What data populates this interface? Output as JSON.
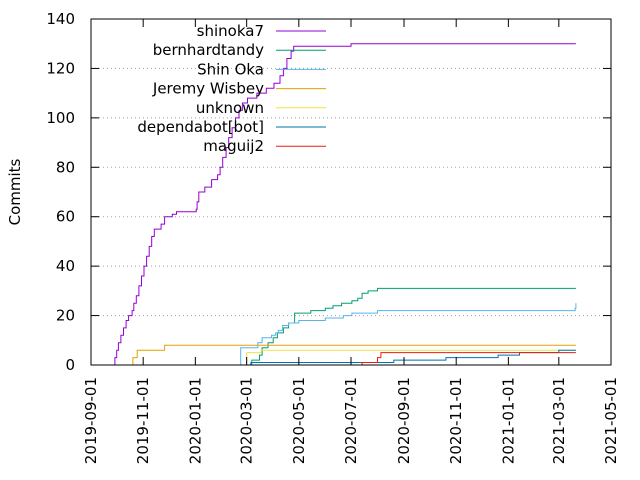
{
  "chart_data": {
    "type": "line",
    "title": "",
    "xlabel": "",
    "ylabel": "Commits",
    "ylim": [
      0,
      140
    ],
    "yticks": [
      0,
      20,
      40,
      60,
      80,
      100,
      120,
      140
    ],
    "xlim": [
      "2019-09-01",
      "2021-05-01"
    ],
    "xticks": [
      "2019-09-01",
      "2019-11-01",
      "2020-01-01",
      "2020-03-01",
      "2020-05-01",
      "2020-07-01",
      "2020-09-01",
      "2020-11-01",
      "2021-01-01",
      "2021-03-01",
      "2021-05-01"
    ],
    "grid": true,
    "grid_style": "dotted",
    "step": true,
    "legend_position": "top-left",
    "series": [
      {
        "name": "shinoka7",
        "color": "#9400d3",
        "points": [
          [
            "2019-09-27",
            0
          ],
          [
            "2019-09-29",
            3
          ],
          [
            "2019-10-01",
            6
          ],
          [
            "2019-10-03",
            9
          ],
          [
            "2019-10-06",
            12
          ],
          [
            "2019-10-09",
            15
          ],
          [
            "2019-10-12",
            18
          ],
          [
            "2019-10-15",
            20
          ],
          [
            "2019-10-19",
            22
          ],
          [
            "2019-10-21",
            25
          ],
          [
            "2019-10-24",
            28
          ],
          [
            "2019-10-27",
            32
          ],
          [
            "2019-10-30",
            36
          ],
          [
            "2019-11-02",
            40
          ],
          [
            "2019-11-05",
            44
          ],
          [
            "2019-11-08",
            48
          ],
          [
            "2019-11-11",
            52
          ],
          [
            "2019-11-14",
            55
          ],
          [
            "2019-11-22",
            57
          ],
          [
            "2019-11-26",
            60
          ],
          [
            "2019-12-05",
            61
          ],
          [
            "2019-12-10",
            62
          ],
          [
            "2020-01-02",
            63
          ],
          [
            "2020-01-03",
            66
          ],
          [
            "2020-01-05",
            70
          ],
          [
            "2020-01-12",
            72
          ],
          [
            "2020-01-20",
            75
          ],
          [
            "2020-01-27",
            77
          ],
          [
            "2020-01-30",
            80
          ],
          [
            "2020-02-02",
            84
          ],
          [
            "2020-02-06",
            88
          ],
          [
            "2020-02-09",
            92
          ],
          [
            "2020-02-13",
            96
          ],
          [
            "2020-02-17",
            100
          ],
          [
            "2020-02-21",
            103
          ],
          [
            "2020-02-25",
            106
          ],
          [
            "2020-03-02",
            108
          ],
          [
            "2020-03-13",
            110
          ],
          [
            "2020-03-24",
            112
          ],
          [
            "2020-04-02",
            114
          ],
          [
            "2020-04-09",
            117
          ],
          [
            "2020-04-13",
            120
          ],
          [
            "2020-04-17",
            124
          ],
          [
            "2020-04-22",
            127
          ],
          [
            "2020-04-25",
            129
          ],
          [
            "2020-07-01",
            130
          ],
          [
            "2021-03-21",
            130
          ]
        ]
      },
      {
        "name": "bernhardtandy",
        "color": "#009e73",
        "points": [
          [
            "2020-02-22",
            0
          ],
          [
            "2020-03-07",
            2
          ],
          [
            "2020-03-16",
            4
          ],
          [
            "2020-03-19",
            7
          ],
          [
            "2020-03-26",
            9
          ],
          [
            "2020-04-01",
            11
          ],
          [
            "2020-04-06",
            13
          ],
          [
            "2020-04-13",
            15
          ],
          [
            "2020-04-19",
            17
          ],
          [
            "2020-04-26",
            21
          ],
          [
            "2020-05-15",
            22
          ],
          [
            "2020-06-01",
            23
          ],
          [
            "2020-06-10",
            24
          ],
          [
            "2020-06-20",
            25
          ],
          [
            "2020-07-02",
            26
          ],
          [
            "2020-07-09",
            27
          ],
          [
            "2020-07-14",
            29
          ],
          [
            "2020-07-21",
            30
          ],
          [
            "2020-08-01",
            31
          ],
          [
            "2021-03-21",
            31
          ]
        ]
      },
      {
        "name": "Shin Oka",
        "color": "#56b4e9",
        "points": [
          [
            "2020-02-20",
            0
          ],
          [
            "2020-02-23",
            7
          ],
          [
            "2020-03-14",
            9
          ],
          [
            "2020-03-19",
            11
          ],
          [
            "2020-03-30",
            12
          ],
          [
            "2020-04-04",
            13
          ],
          [
            "2020-04-07",
            14
          ],
          [
            "2020-04-12",
            16
          ],
          [
            "2020-04-19",
            17
          ],
          [
            "2020-05-01",
            18
          ],
          [
            "2020-06-01",
            19
          ],
          [
            "2020-06-22",
            20
          ],
          [
            "2020-07-02",
            21
          ],
          [
            "2020-08-01",
            22
          ],
          [
            "2021-03-20",
            23
          ],
          [
            "2021-03-21",
            25
          ]
        ]
      },
      {
        "name": "Jeremy Wisbey",
        "color": "#e69f00",
        "points": [
          [
            "2019-10-17",
            0
          ],
          [
            "2019-10-20",
            3
          ],
          [
            "2019-10-25",
            6
          ],
          [
            "2019-11-26",
            8
          ],
          [
            "2021-03-21",
            8
          ]
        ]
      },
      {
        "name": "unknown",
        "color": "#f0e442",
        "points": [
          [
            "2020-02-26",
            0
          ],
          [
            "2020-03-01",
            5
          ],
          [
            "2020-03-18",
            6
          ],
          [
            "2021-03-21",
            6
          ]
        ]
      },
      {
        "name": "dependabot[bot]",
        "color": "#0072b2",
        "points": [
          [
            "2020-03-05",
            0
          ],
          [
            "2020-03-06",
            1
          ],
          [
            "2020-08-20",
            2
          ],
          [
            "2020-10-20",
            3
          ],
          [
            "2020-12-20",
            4
          ],
          [
            "2021-01-14",
            5
          ],
          [
            "2021-03-01",
            6
          ],
          [
            "2021-03-21",
            6
          ]
        ]
      },
      {
        "name": "maguij2",
        "color": "#e51e10",
        "points": [
          [
            "2020-07-10",
            0
          ],
          [
            "2020-07-14",
            1
          ],
          [
            "2020-08-01",
            3
          ],
          [
            "2020-08-05",
            5
          ],
          [
            "2021-03-21",
            5
          ]
        ]
      }
    ]
  }
}
